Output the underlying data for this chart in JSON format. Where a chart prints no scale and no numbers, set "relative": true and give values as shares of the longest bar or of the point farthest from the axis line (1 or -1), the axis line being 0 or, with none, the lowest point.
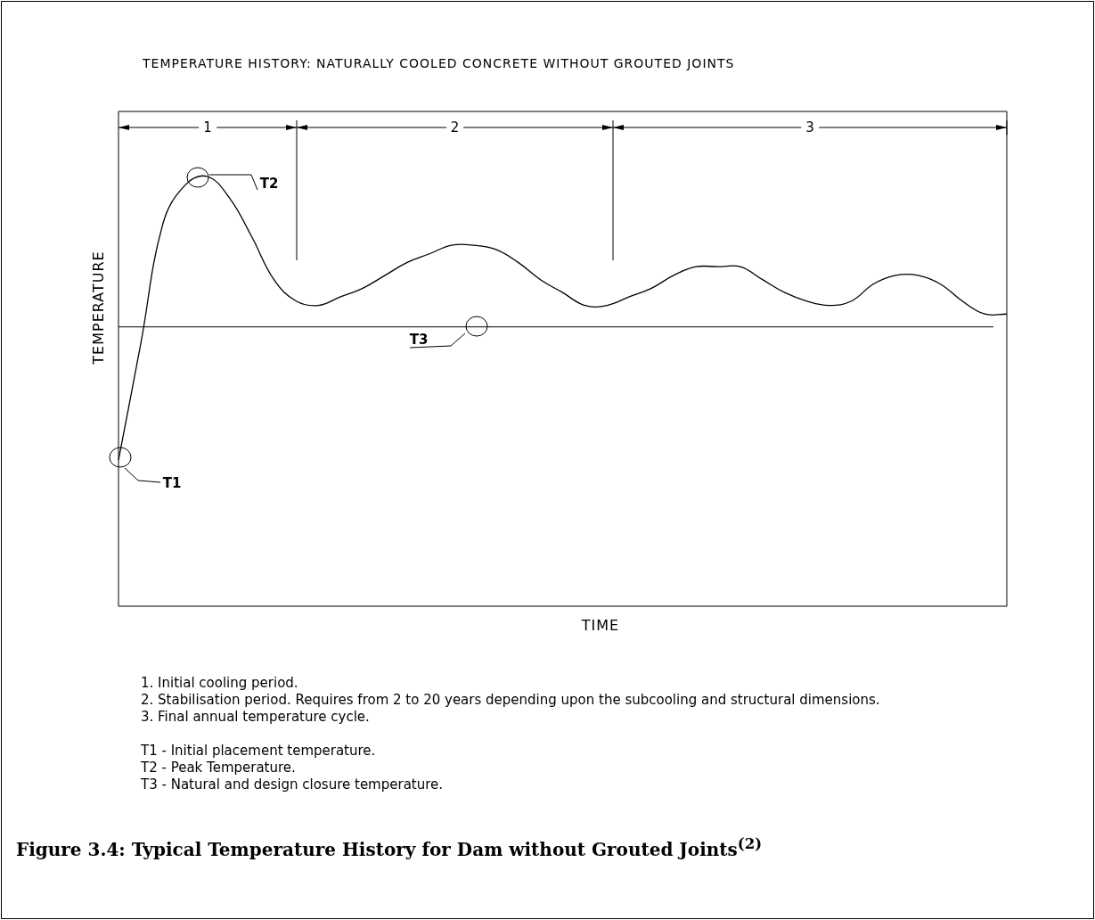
{
  "chart_data": {
    "type": "line",
    "relative": true,
    "title": "TEMPERATURE HISTORY: NATURALLY COOLED CONCRETE WITHOUT GROUTED JOINTS",
    "subtitle": "Figure 3.4: Typical Temperature History for Dam without Grouted Joints$^{(2)}$",
    "xlabel": "TIME",
    "ylabel": "TEMPERATURE",
    "categories": [
      null,
      null,
      null,
      null,
      null,
      null,
      null,
      null,
      null,
      null,
      null,
      null,
      null,
      null,
      null,
      null,
      null,
      null,
      null,
      null,
      null,
      null,
      null,
      null,
      null,
      null,
      null,
      null,
      null,
      null,
      null,
      null,
      null,
      null,
      null,
      null,
      null,
      null,
      null,
      null,
      null
    ],
    "series": [
      {
        "color": "#000000",
        "values": [
          0.34,
          0.61,
          0.89,
          0.98,
          1,
          0.95,
          0.86,
          0.76,
          0.71,
          0.7,
          0.72,
          0.74,
          0.77,
          0.8,
          0.82,
          0.84,
          0.84,
          0.83,
          0.8,
          0.76,
          0.73,
          0.7,
          0.7,
          0.72,
          0.74,
          0.77,
          0.79,
          0.79,
          0.79,
          0.76,
          0.73,
          0.71,
          0.7,
          0.71,
          0.75,
          0.77,
          0.77,
          0.75,
          0.71,
          0.68,
          0.68
        ]
      }
    ],
    "ref_lines": [
      {
        "axis": "y",
        "value": 0.65,
        "label": "T3",
        "color": "#000000"
      }
    ],
    "annotations": [
      "1",
      "2",
      "3",
      "T1",
      "T2",
      "1. Initial cooling period.",
      "2. Stabilisation period. Requires from 2 to 20 years depending upon the subcooling and structural dimensions.",
      "3. Final annual temperature cycle.",
      "T1 - Initial placement temperature.",
      "T2 - Peak Temperature.",
      "T3 - Natural and design closure temperature."
    ],
    "line_style": "solid"
  }
}
